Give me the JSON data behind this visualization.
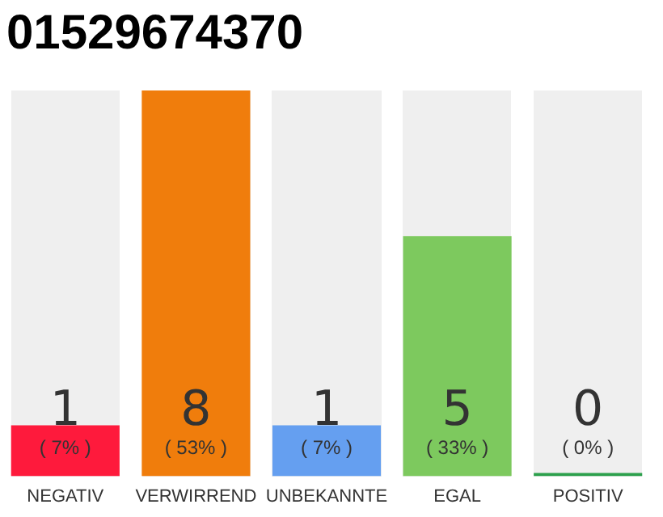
{
  "chart_data": {
    "type": "bar",
    "title": "01529674370",
    "categories": [
      "NEGATIV",
      "VERWIRREND",
      "UNBEKANNTE",
      "EGAL",
      "POSITIV"
    ],
    "values": [
      7,
      53,
      7,
      33,
      0
    ],
    "colors": [
      "#fe1a3c",
      "#f07d0c",
      "#659ff0",
      "#7dc95e",
      "#2ca04c"
    ],
    "value_labels": [
      "( 7% )",
      "( 53% )",
      "( 7% )",
      "( 33% )",
      "( 0% )"
    ],
    "annotations": [
      "1",
      "8",
      "1",
      "5",
      "0"
    ],
    "tick_labels": "x"
  }
}
